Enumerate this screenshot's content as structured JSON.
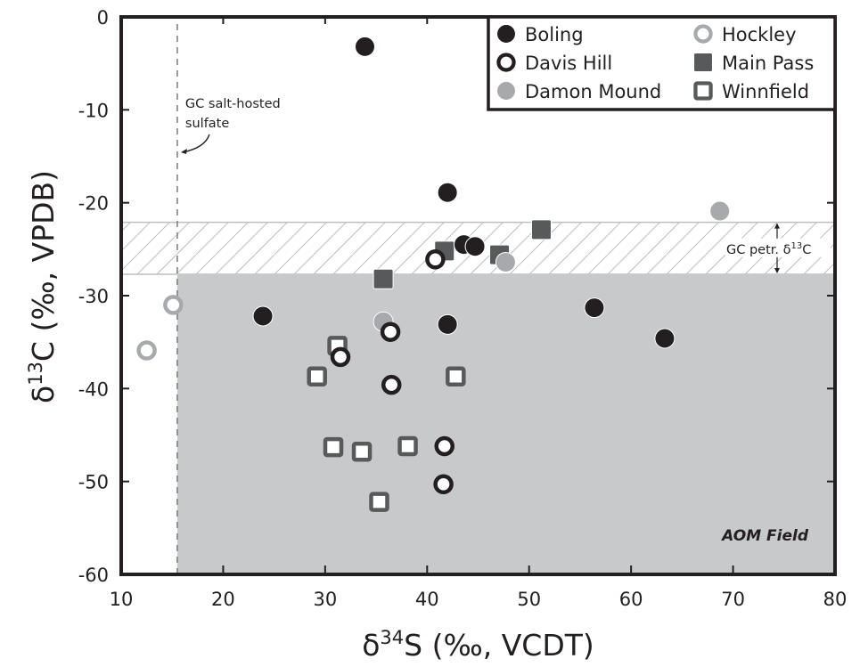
{
  "chart_data": {
    "type": "scatter",
    "title": "",
    "xlabel": {
      "delta": "δ",
      "sup": "34",
      "rest": "S (‰, VCDT)"
    },
    "ylabel": {
      "delta": "δ",
      "sup": "13",
      "rest": "C (‰, VPDB)"
    },
    "xlim": [
      10,
      80
    ],
    "ylim": [
      -60,
      0
    ],
    "xticks": [
      10,
      20,
      30,
      40,
      50,
      60,
      70,
      80
    ],
    "yticks": [
      0,
      -10,
      -20,
      -30,
      -40,
      -50,
      -60
    ],
    "grid": false,
    "legend_position": "top-right",
    "colors": {
      "dark": "#231f20",
      "mid_gray": "#58595b",
      "light_gray": "#a7a9ac",
      "aom_fill": "#c8c9cb",
      "band_line": "#bcbec0"
    },
    "regions": {
      "gc_salt_sulfate_x": 15.5,
      "gc_petr_band": {
        "y_top": -22.1,
        "y_bottom": -27.7
      },
      "aom_field": {
        "x_min": 15.5,
        "y_max": -27.7
      }
    },
    "annotations": {
      "gc_salt_line1": "GC salt-hosted",
      "gc_salt_line2": "sulfate",
      "gc_petr": {
        "prefix": "GC petr. δ",
        "sup": "13",
        "suffix": "C"
      },
      "aom": "AOM Field"
    },
    "series": [
      {
        "name": "Boling",
        "marker": "filled-circle",
        "color": "#231f20",
        "points": [
          [
            33.9,
            -3.2
          ],
          [
            42.0,
            -18.9
          ],
          [
            43.6,
            -24.5
          ],
          [
            44.7,
            -24.7
          ],
          [
            23.9,
            -32.2
          ],
          [
            42.0,
            -33.1
          ],
          [
            56.4,
            -31.3
          ],
          [
            63.3,
            -34.6
          ]
        ]
      },
      {
        "name": "Davis Hill",
        "marker": "open-circle",
        "color": "#231f20",
        "points": [
          [
            40.8,
            -26.1
          ],
          [
            36.4,
            -33.9
          ],
          [
            31.5,
            -36.6
          ],
          [
            36.5,
            -39.6
          ],
          [
            41.7,
            -46.2
          ],
          [
            41.6,
            -50.3
          ]
        ]
      },
      {
        "name": "Damon Mound",
        "marker": "filled-circle",
        "color": "#a7a9ac",
        "points": [
          [
            68.7,
            -20.9
          ],
          [
            47.7,
            -26.4
          ],
          [
            35.7,
            -32.8
          ]
        ]
      },
      {
        "name": "Hockley",
        "marker": "open-circle",
        "color": "#a7a9ac",
        "points": [
          [
            15.1,
            -31.0
          ],
          [
            12.5,
            -35.9
          ]
        ]
      },
      {
        "name": "Main Pass",
        "marker": "filled-square",
        "color": "#58595b",
        "points": [
          [
            51.2,
            -22.9
          ],
          [
            41.7,
            -25.2
          ],
          [
            47.1,
            -25.6
          ],
          [
            35.7,
            -28.2
          ]
        ]
      },
      {
        "name": "Winnfield",
        "marker": "open-square",
        "color": "#58595b",
        "points": [
          [
            31.2,
            -35.4
          ],
          [
            29.2,
            -38.7
          ],
          [
            42.8,
            -38.7
          ],
          [
            30.8,
            -46.3
          ],
          [
            33.6,
            -46.8
          ],
          [
            38.1,
            -46.2
          ],
          [
            35.3,
            -52.2
          ]
        ]
      }
    ],
    "legend": [
      {
        "label": "Boling",
        "marker": "filled-circle",
        "color": "#231f20"
      },
      {
        "label": "Davis Hill",
        "marker": "open-circle",
        "color": "#231f20"
      },
      {
        "label": "Damon Mound",
        "marker": "filled-circle",
        "color": "#a7a9ac"
      },
      {
        "label": "Hockley",
        "marker": "open-circle",
        "color": "#a7a9ac"
      },
      {
        "label": "Main Pass",
        "marker": "filled-square",
        "color": "#58595b"
      },
      {
        "label": "Winnfield",
        "marker": "open-square",
        "color": "#58595b"
      }
    ]
  }
}
